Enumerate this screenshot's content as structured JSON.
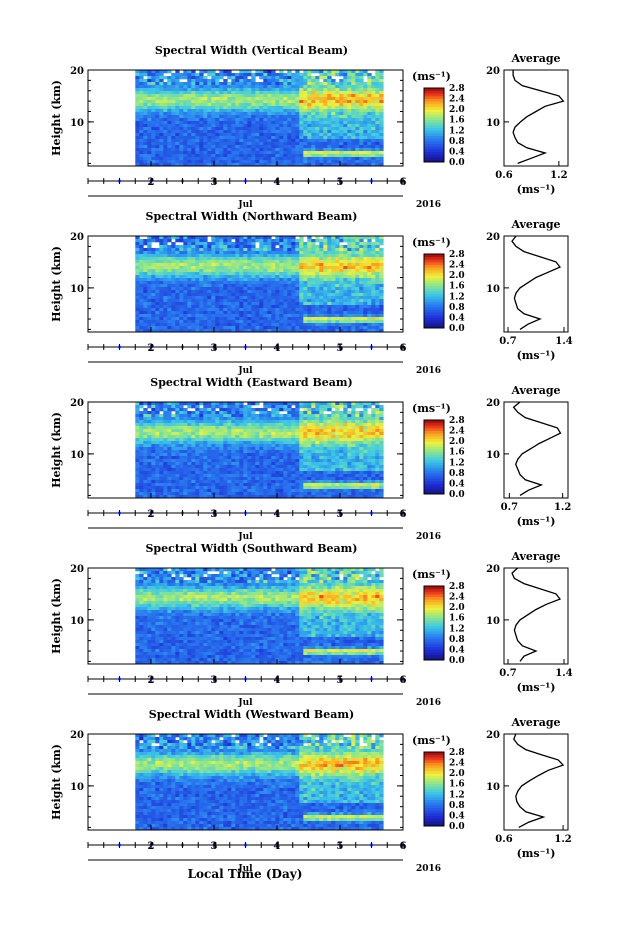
{
  "figure": {
    "xlabel": "Local Time (Day)",
    "month_label": "Jul",
    "year_label": "2016",
    "height_label": "Height (km)",
    "unit_label": "(ms⁻¹)",
    "average_title": "Average"
  },
  "chart_data": [
    {
      "type": "heatmap",
      "title": "Spectral Width (Vertical Beam)",
      "xlabel": "Local Time (Day)",
      "ylabel": "Height (km)",
      "x_ticks": [
        "2",
        "3",
        "4",
        "5",
        "6"
      ],
      "y_ticks": [
        "10",
        "20"
      ],
      "xlim_day": [
        1.0,
        6.0
      ],
      "data_start_day": 1.75,
      "data_end_day": 5.65,
      "ylim_km": [
        1.5,
        20
      ],
      "colorbar": {
        "label": "(ms⁻¹)",
        "ticks": [
          "0.0",
          "0.4",
          "0.8",
          "1.2",
          "1.6",
          "2.0",
          "2.4",
          "2.8"
        ],
        "range": [
          0.0,
          2.8
        ]
      },
      "average": {
        "title": "Average",
        "xlabel": "(ms⁻¹)",
        "xticks": [
          "0.6",
          "1.2"
        ],
        "xlim": [
          0.6,
          1.3
        ],
        "heights": [
          2,
          3,
          4,
          5,
          6,
          7,
          8,
          9,
          10,
          11,
          12,
          13,
          14,
          15,
          16,
          17,
          18,
          19,
          20
        ],
        "values": [
          0.75,
          0.9,
          1.05,
          0.85,
          0.75,
          0.72,
          0.7,
          0.72,
          0.78,
          0.85,
          0.95,
          1.05,
          1.25,
          1.2,
          1.0,
          0.8,
          0.72,
          0.7,
          0.7
        ]
      }
    },
    {
      "type": "heatmap",
      "title": "Spectral Width (Northward Beam)",
      "xlabel": "Local Time (Day)",
      "ylabel": "Height (km)",
      "x_ticks": [
        "2",
        "3",
        "4",
        "5",
        "6"
      ],
      "y_ticks": [
        "10",
        "20"
      ],
      "xlim_day": [
        1.0,
        6.0
      ],
      "data_start_day": 1.75,
      "data_end_day": 5.65,
      "ylim_km": [
        1.5,
        20
      ],
      "colorbar": {
        "label": "(ms⁻¹)",
        "ticks": [
          "0.0",
          "0.4",
          "0.8",
          "1.2",
          "1.6",
          "2.0",
          "2.4",
          "2.8"
        ],
        "range": [
          0.0,
          2.8
        ]
      },
      "average": {
        "title": "Average",
        "xlabel": "(ms⁻¹)",
        "xticks": [
          "0.7",
          "1.4"
        ],
        "xlim": [
          0.65,
          1.45
        ],
        "heights": [
          2,
          3,
          4,
          5,
          6,
          7,
          8,
          9,
          10,
          11,
          12,
          13,
          14,
          15,
          16,
          17,
          18,
          19,
          20
        ],
        "values": [
          0.85,
          0.95,
          1.1,
          0.9,
          0.82,
          0.8,
          0.78,
          0.8,
          0.85,
          0.95,
          1.05,
          1.2,
          1.35,
          1.3,
          1.1,
          0.9,
          0.8,
          0.75,
          0.8
        ]
      }
    },
    {
      "type": "heatmap",
      "title": "Spectral Width (Eastward Beam)",
      "xlabel": "Local Time (Day)",
      "ylabel": "Height (km)",
      "x_ticks": [
        "2",
        "3",
        "4",
        "5",
        "6"
      ],
      "y_ticks": [
        "10",
        "20"
      ],
      "xlim_day": [
        1.0,
        6.0
      ],
      "data_start_day": 1.75,
      "data_end_day": 5.65,
      "ylim_km": [
        1.5,
        20
      ],
      "colorbar": {
        "label": "(ms⁻¹)",
        "ticks": [
          "0.0",
          "0.4",
          "0.8",
          "1.2",
          "1.6",
          "2.0",
          "2.4",
          "2.8"
        ],
        "range": [
          0.0,
          2.8
        ]
      },
      "average": {
        "title": "Average",
        "xlabel": "(ms⁻¹)",
        "xticks": [
          "0.7",
          "1.2"
        ],
        "xlim": [
          0.65,
          1.25
        ],
        "heights": [
          2,
          3,
          4,
          5,
          6,
          7,
          8,
          9,
          10,
          11,
          12,
          13,
          14,
          15,
          16,
          17,
          18,
          19,
          20
        ],
        "values": [
          0.8,
          0.88,
          1.0,
          0.85,
          0.8,
          0.78,
          0.76,
          0.78,
          0.82,
          0.9,
          0.98,
          1.08,
          1.18,
          1.15,
          1.0,
          0.85,
          0.78,
          0.74,
          0.8
        ]
      }
    },
    {
      "type": "heatmap",
      "title": "Spectral Width (Southward Beam)",
      "xlabel": "Local Time (Day)",
      "ylabel": "Height (km)",
      "x_ticks": [
        "2",
        "3",
        "4",
        "5",
        "6"
      ],
      "y_ticks": [
        "10",
        "20"
      ],
      "xlim_day": [
        1.0,
        6.0
      ],
      "data_start_day": 1.75,
      "data_end_day": 5.65,
      "ylim_km": [
        1.5,
        20
      ],
      "colorbar": {
        "label": "(ms⁻¹)",
        "ticks": [
          "0.0",
          "0.4",
          "0.8",
          "1.2",
          "1.6",
          "2.0",
          "2.4",
          "2.8"
        ],
        "range": [
          0.0,
          2.8
        ]
      },
      "average": {
        "title": "Average",
        "xlabel": "(ms⁻¹)",
        "xticks": [
          "0.7",
          "1.4"
        ],
        "xlim": [
          0.65,
          1.45
        ],
        "heights": [
          2,
          3,
          4,
          5,
          6,
          7,
          8,
          9,
          10,
          11,
          12,
          13,
          14,
          15,
          16,
          17,
          18,
          19,
          20
        ],
        "values": [
          0.85,
          0.9,
          1.05,
          0.88,
          0.82,
          0.8,
          0.78,
          0.8,
          0.85,
          0.95,
          1.05,
          1.18,
          1.35,
          1.3,
          1.1,
          0.9,
          0.78,
          0.75,
          0.82
        ]
      }
    },
    {
      "type": "heatmap",
      "title": "Spectral Width (Westward Beam)",
      "xlabel": "Local Time (Day)",
      "ylabel": "Height (km)",
      "x_ticks": [
        "2",
        "3",
        "4",
        "5",
        "6"
      ],
      "y_ticks": [
        "10",
        "20"
      ],
      "xlim_day": [
        1.0,
        6.0
      ],
      "data_start_day": 1.75,
      "data_end_day": 5.65,
      "ylim_km": [
        1.5,
        20
      ],
      "colorbar": {
        "label": "(ms⁻¹)",
        "ticks": [
          "0.0",
          "0.4",
          "0.8",
          "1.2",
          "1.6",
          "2.0",
          "2.4",
          "2.8"
        ],
        "range": [
          0.0,
          2.8
        ]
      },
      "average": {
        "title": "Average",
        "xlabel": "(ms⁻¹)",
        "xticks": [
          "0.6",
          "1.2"
        ],
        "xlim": [
          0.6,
          1.25
        ],
        "heights": [
          2,
          3,
          4,
          5,
          6,
          7,
          8,
          9,
          10,
          11,
          12,
          13,
          14,
          15,
          16,
          17,
          18,
          19,
          20
        ],
        "values": [
          0.75,
          0.85,
          1.0,
          0.82,
          0.76,
          0.73,
          0.72,
          0.74,
          0.78,
          0.86,
          0.95,
          1.05,
          1.2,
          1.15,
          0.98,
          0.82,
          0.74,
          0.7,
          0.72
        ]
      }
    }
  ]
}
